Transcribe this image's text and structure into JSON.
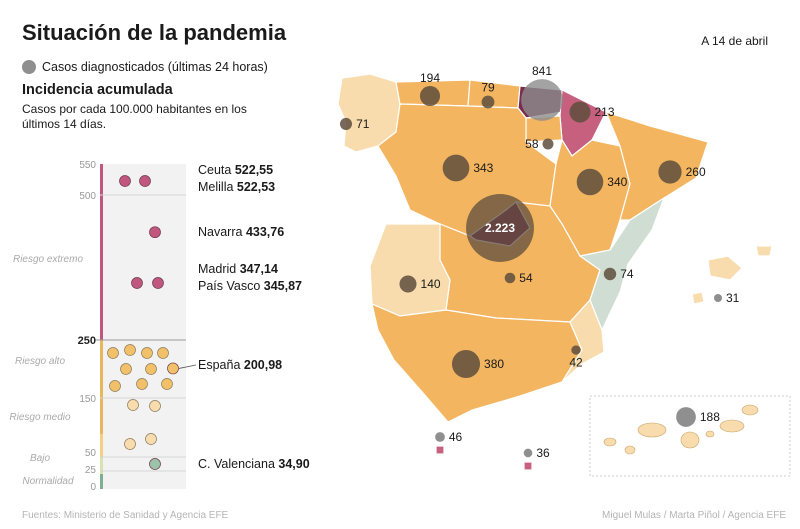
{
  "header": {
    "title": "Situación de la pandemia",
    "date": "A 14 de abril",
    "legend_cases": "Casos diagnosticados (últimas 24 horas)",
    "incidence_title": "Incidencia acumulada",
    "incidence_subtitle": "Casos por cada 100.000 habitantes en los últimos 14 días."
  },
  "colors": {
    "region_fill": "#f3b55f",
    "region_light": "#f8dcae",
    "region_madrid": "#7b2b4c",
    "region_navarra": "#c7607f",
    "region_valencia": "#cfddd2",
    "bubble": "#5e4d3d",
    "extreme_bar": "#c1577f",
    "high_bar": "#e9b75c",
    "low_bar": "#9cc2a9"
  },
  "scale": {
    "ticks": [
      "550",
      "500",
      "250",
      "150",
      "50",
      "25",
      "0"
    ],
    "bands": [
      "Riesgo extremo",
      "Riesgo alto",
      "Riesgo medio",
      "Bajo",
      "Normalidad"
    ],
    "labeled": [
      {
        "name": "Ceuta",
        "value": "522,55",
        "v": 522.55
      },
      {
        "name": "Melilla",
        "value": "522,53",
        "v": 522.53
      },
      {
        "name": "Navarra",
        "value": "433,76",
        "v": 433.76
      },
      {
        "name": "Madrid",
        "value": "347,14",
        "v": 347.14
      },
      {
        "name": "País Vasco",
        "value": "345,87",
        "v": 345.87
      },
      {
        "name": "España",
        "value": "200,98",
        "v": 200.98
      },
      {
        "name": "C. Valenciana",
        "value": "34,90",
        "v": 34.9
      }
    ]
  },
  "cases": [
    {
      "region": "Galicia",
      "label": "71",
      "value": 71
    },
    {
      "region": "Asturias",
      "label": "194",
      "value": 194
    },
    {
      "region": "Cantabria",
      "label": "79",
      "value": 79
    },
    {
      "region": "País Vasco",
      "label": "841",
      "value": 841
    },
    {
      "region": "Navarra",
      "label": "213",
      "value": 213
    },
    {
      "region": "La Rioja",
      "label": "58",
      "value": 58
    },
    {
      "region": "Castilla y León",
      "label": "343",
      "value": 343
    },
    {
      "region": "Aragón",
      "label": "340",
      "value": 340
    },
    {
      "region": "Cataluña",
      "label": "260",
      "value": 260
    },
    {
      "region": "Madrid",
      "label": "2.223",
      "value": 2223
    },
    {
      "region": "Castilla-La Mancha",
      "label": "54",
      "value": 54
    },
    {
      "region": "C. Valenciana",
      "label": "74",
      "value": 74
    },
    {
      "region": "Baleares",
      "label": "31",
      "value": 31
    },
    {
      "region": "Extremadura",
      "label": "140",
      "value": 140
    },
    {
      "region": "Andalucía",
      "label": "380",
      "value": 380
    },
    {
      "region": "Murcia",
      "label": "42",
      "value": 42
    },
    {
      "region": "Ceuta",
      "label": "46",
      "value": 46
    },
    {
      "region": "Melilla",
      "label": "36",
      "value": 36
    },
    {
      "region": "Canarias",
      "label": "188",
      "value": 188
    }
  ],
  "footer": {
    "source": "Fuentes: Ministerio de Sanidad y Agencia EFE",
    "credit": "Miguel Mulas / Marta Piñol / Agencia EFE"
  }
}
